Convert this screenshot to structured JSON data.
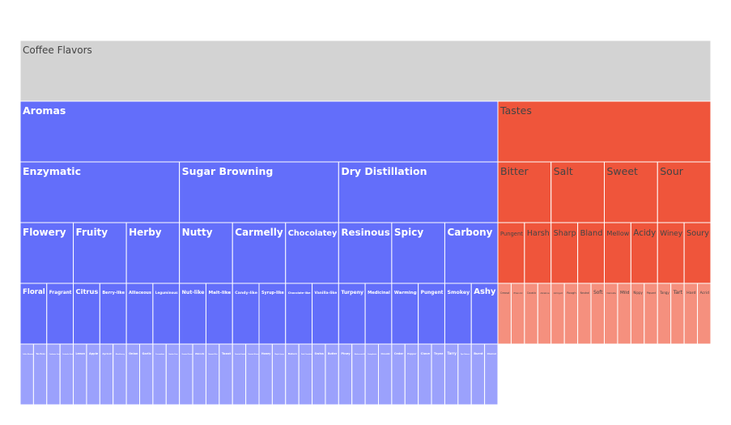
{
  "chart_data": {
    "type": "icicle",
    "colors": {
      "root": "#d3d3d3",
      "aromas": "#636efa",
      "aromas_leaf": "#9ba1fc",
      "tastes": "#ef553b",
      "tastes_leaf": "#f5907e",
      "border": "#ffffff",
      "root_text": "#444444",
      "aroma_text": "#ffffff",
      "taste_text": "#444444"
    },
    "root": {
      "name": "Coffee Flavors",
      "children": [
        {
          "name": "Aromas",
          "group": "aromas",
          "children": [
            {
              "name": "Enzymatic",
              "children": [
                {
                  "name": "Flowery",
                  "children": [
                    {
                      "name": "Floral",
                      "children": [
                        {
                          "name": "Coffee Blossom"
                        },
                        {
                          "name": "Tea Rose"
                        }
                      ]
                    },
                    {
                      "name": "Fragrant",
                      "children": [
                        {
                          "name": "Cardamon Caraway"
                        },
                        {
                          "name": "Coriander Seeds"
                        }
                      ]
                    }
                  ]
                },
                {
                  "name": "Fruity",
                  "children": [
                    {
                      "name": "Citrus",
                      "children": [
                        {
                          "name": "Lemon"
                        },
                        {
                          "name": "Apple"
                        }
                      ]
                    },
                    {
                      "name": "Berry-like",
                      "children": [
                        {
                          "name": "Apricot"
                        },
                        {
                          "name": "Blackberry"
                        }
                      ]
                    }
                  ]
                },
                {
                  "name": "Herby",
                  "children": [
                    {
                      "name": "Alliaceous",
                      "children": [
                        {
                          "name": "Onion"
                        },
                        {
                          "name": "Garlic"
                        }
                      ]
                    },
                    {
                      "name": "Leguminous",
                      "children": [
                        {
                          "name": "Cucumber"
                        },
                        {
                          "name": "Garden Peas"
                        }
                      ]
                    }
                  ]
                }
              ]
            },
            {
              "name": "Sugar Browning",
              "children": [
                {
                  "name": "Nutty",
                  "children": [
                    {
                      "name": "Nut-like",
                      "children": [
                        {
                          "name": "Roasted Peanuts"
                        },
                        {
                          "name": "Walnuts"
                        }
                      ]
                    },
                    {
                      "name": "Malt-like",
                      "children": [
                        {
                          "name": "Basmati Rice"
                        },
                        {
                          "name": "Toast"
                        }
                      ]
                    }
                  ]
                },
                {
                  "name": "Carmelly",
                  "children": [
                    {
                      "name": "Candy-like",
                      "children": [
                        {
                          "name": "Roasted Hazelnut"
                        },
                        {
                          "name": "Roasted Almond"
                        }
                      ]
                    },
                    {
                      "name": "Syrup-like",
                      "children": [
                        {
                          "name": "Honey"
                        },
                        {
                          "name": "Maple Syrup"
                        }
                      ]
                    }
                  ]
                },
                {
                  "name": "Chocolatey",
                  "children": [
                    {
                      "name": "Chocolate-like",
                      "children": [
                        {
                          "name": "Bakers"
                        },
                        {
                          "name": "Dark Chocolate"
                        }
                      ]
                    },
                    {
                      "name": "Vanilla-like",
                      "children": [
                        {
                          "name": "Swiss"
                        },
                        {
                          "name": "Butter"
                        }
                      ]
                    }
                  ]
                }
              ]
            },
            {
              "name": "Dry Distillation",
              "children": [
                {
                  "name": "Resinous",
                  "children": [
                    {
                      "name": "Turpeny",
                      "children": [
                        {
                          "name": "Piney"
                        },
                        {
                          "name": "Blackcurrant-like"
                        }
                      ]
                    },
                    {
                      "name": "Medicinal",
                      "children": [
                        {
                          "name": "Camphoric"
                        },
                        {
                          "name": "Cineolic"
                        }
                      ]
                    }
                  ]
                },
                {
                  "name": "Spicy",
                  "children": [
                    {
                      "name": "Warming",
                      "children": [
                        {
                          "name": "Cedar"
                        },
                        {
                          "name": "Pepper"
                        }
                      ]
                    },
                    {
                      "name": "Pungent",
                      "children": [
                        {
                          "name": "Clove"
                        },
                        {
                          "name": "Thyme"
                        }
                      ]
                    }
                  ]
                },
                {
                  "name": "Carbony",
                  "children": [
                    {
                      "name": "Smokey",
                      "children": [
                        {
                          "name": "Tarry"
                        },
                        {
                          "name": "Pipe Tobacco"
                        }
                      ]
                    },
                    {
                      "name": "Ashy",
                      "children": [
                        {
                          "name": "Burnt"
                        },
                        {
                          "name": "Charred"
                        }
                      ]
                    }
                  ]
                }
              ]
            }
          ]
        },
        {
          "name": "Tastes",
          "group": "tastes",
          "children": [
            {
              "name": "Bitter",
              "children": [
                {
                  "name": "Pungent",
                  "children": [
                    {
                      "name": "Creosol"
                    },
                    {
                      "name": "Phenolic"
                    }
                  ]
                },
                {
                  "name": "Harsh",
                  "children": [
                    {
                      "name": "Caustic"
                    },
                    {
                      "name": "Alkaline"
                    }
                  ]
                }
              ]
            },
            {
              "name": "Salt",
              "children": [
                {
                  "name": "Sharp",
                  "children": [
                    {
                      "name": "Astringent"
                    },
                    {
                      "name": "Rough"
                    }
                  ]
                },
                {
                  "name": "Bland",
                  "children": [
                    {
                      "name": "Neutral"
                    },
                    {
                      "name": "Soft"
                    }
                  ]
                }
              ]
            },
            {
              "name": "Sweet",
              "children": [
                {
                  "name": "Mellow",
                  "children": [
                    {
                      "name": "Delicate"
                    },
                    {
                      "name": "Mild"
                    }
                  ]
                },
                {
                  "name": "Acidy",
                  "children": [
                    {
                      "name": "Nippy"
                    },
                    {
                      "name": "Piquant"
                    }
                  ]
                }
              ]
            },
            {
              "name": "Sour",
              "children": [
                {
                  "name": "Winey",
                  "children": [
                    {
                      "name": "Tangy"
                    },
                    {
                      "name": "Tart"
                    }
                  ]
                },
                {
                  "name": "Soury",
                  "children": [
                    {
                      "name": "Hard"
                    },
                    {
                      "name": "Acrid"
                    }
                  ]
                }
              ]
            }
          ]
        }
      ]
    }
  }
}
